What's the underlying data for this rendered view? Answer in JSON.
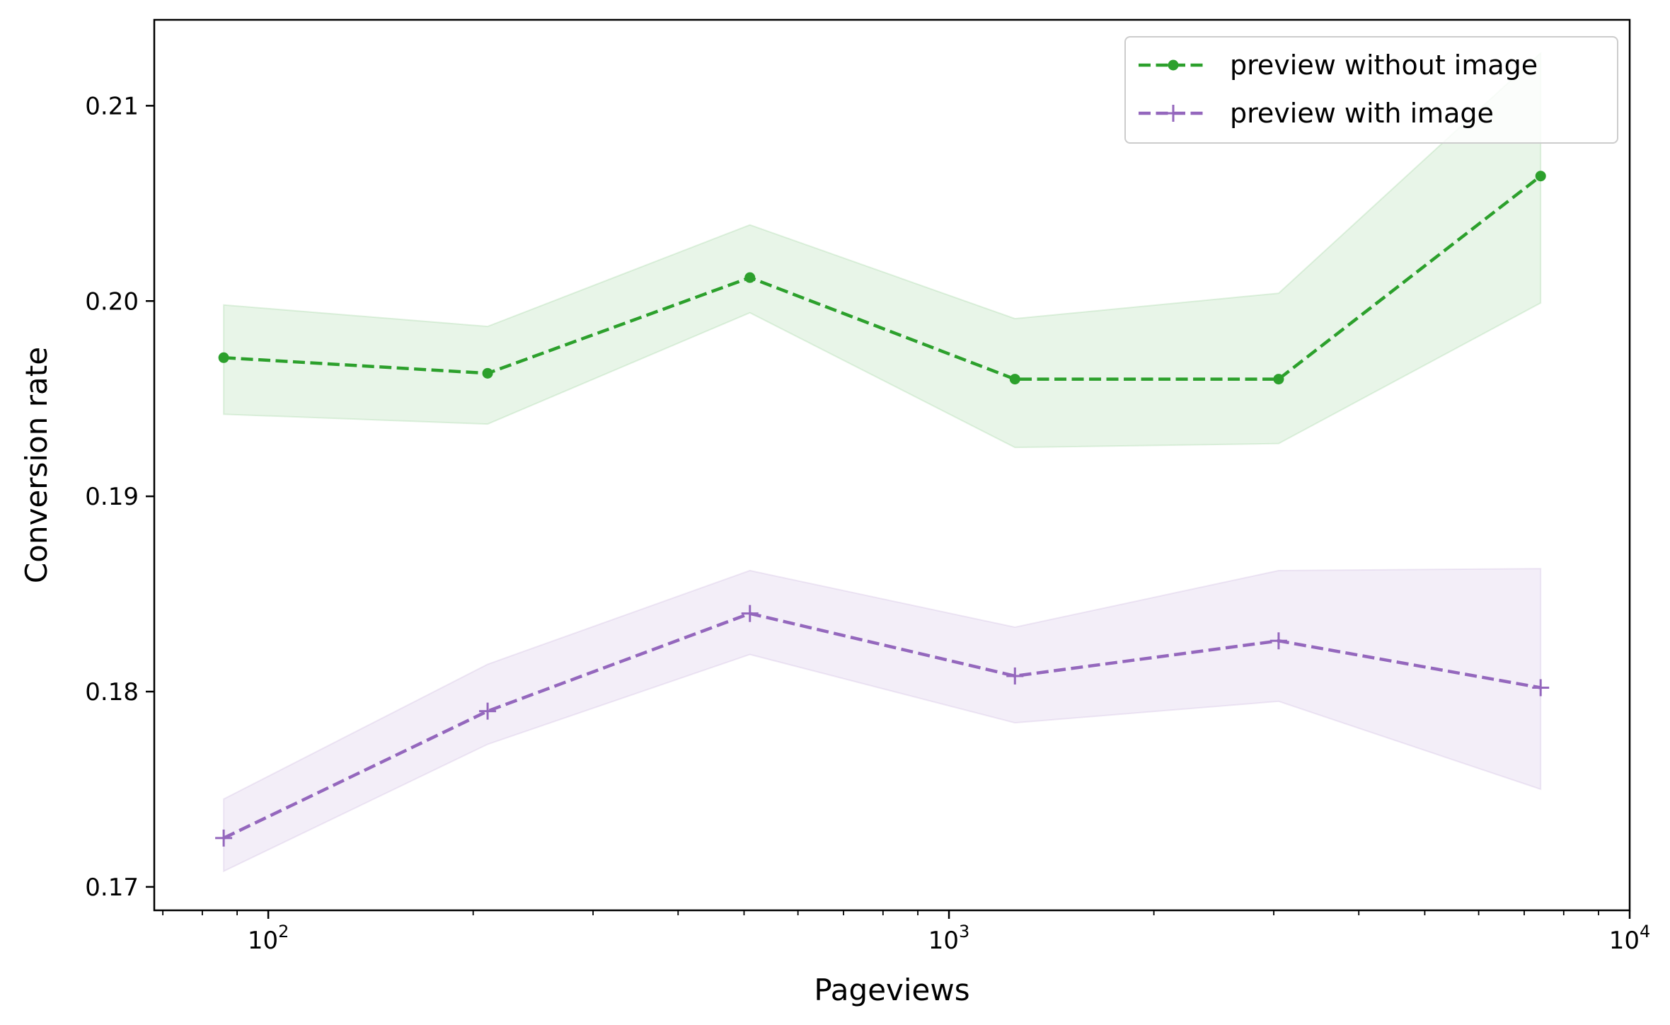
{
  "chart_data": {
    "type": "line",
    "xlabel": "Pageviews",
    "ylabel": "Conversion rate",
    "xscale": "log",
    "xlim": [
      68,
      10000
    ],
    "ylim": [
      0.1688,
      0.2144
    ],
    "x": [
      86,
      210,
      510,
      1250,
      3050,
      7400
    ],
    "yticks": [
      "0.17",
      "0.18",
      "0.19",
      "0.20",
      "0.21"
    ],
    "xticks": [
      {
        "base": "10",
        "exp": "2",
        "value": 100
      },
      {
        "base": "10",
        "exp": "3",
        "value": 1000
      },
      {
        "base": "10",
        "exp": "4",
        "value": 10000
      }
    ],
    "grid": false,
    "legend_position": "top-right",
    "series": [
      {
        "name": "preview without image",
        "color": "#2ca02c",
        "marker": "dot",
        "linestyle": "dashed",
        "values": [
          0.1971,
          0.1963,
          0.2012,
          0.196,
          0.196,
          0.2064
        ],
        "lower": [
          0.1942,
          0.1937,
          0.1994,
          0.1925,
          0.1927,
          0.1999
        ],
        "upper": [
          0.1998,
          0.1987,
          0.2039,
          0.1991,
          0.2004,
          0.2127
        ]
      },
      {
        "name": "preview with image",
        "color": "#9467bd",
        "marker": "plus",
        "linestyle": "dashed",
        "values": [
          0.1725,
          0.179,
          0.184,
          0.1808,
          0.1826,
          0.1802
        ],
        "lower": [
          0.1708,
          0.1773,
          0.1819,
          0.1784,
          0.1795,
          0.175
        ],
        "upper": [
          0.1745,
          0.1814,
          0.1862,
          0.1833,
          0.1862,
          0.1863
        ]
      }
    ]
  }
}
